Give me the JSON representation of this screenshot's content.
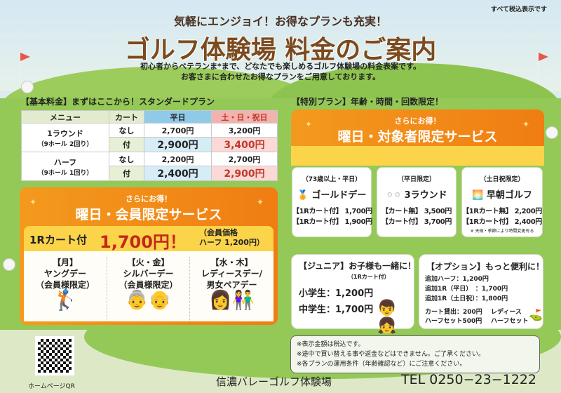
{
  "header": {
    "tax_note": "すべて税込表示です",
    "subtitle": "気軽にエンジョイ！お得なプランも充実！",
    "title": "ゴルフ体験場 料金のご案内",
    "desc_lines": [
      "初心者からベテランま*まで、どなたでも楽しめるゴルフ体験場の料金表案です。",
      "お客さまに合わせたお得なプランをご用意しております。"
    ]
  },
  "basic": {
    "label": "【基本料金】まずはここから！スタンダードプラン",
    "columns": [
      "メニュー",
      "カート",
      "平日",
      "土・日・祝日"
    ],
    "rows": [
      {
        "menu": "1ラウンド",
        "menu_sub": "（9ホール 2回り）",
        "cart_none": "なし",
        "cart_with": "付",
        "wd_none": "2,700円",
        "we_none": "3,200円",
        "wd_with": "2,900円",
        "we_with": "3,400円"
      },
      {
        "menu": "ハーフ",
        "menu_sub": "（9ホール 1回り）",
        "cart_none": "なし",
        "cart_with": "付",
        "wd_none": "2,200円",
        "we_none": "2,700円",
        "wd_with": "2,400円",
        "we_with": "2,900円"
      }
    ]
  },
  "member": {
    "kicker": "さらにお得！",
    "title": "曜日・会員限定サービス",
    "price_prefix": "1Rカート付",
    "price": "1,700円！",
    "price_note_1": "（会員価格",
    "price_note_2": "ハーフ 1,200円）",
    "days": [
      {
        "day": "【月】",
        "name": "ヤングデー",
        "note": "（会員様限定）"
      },
      {
        "day": "【火・金】",
        "name": "シルバーデー",
        "note": "（会員様限定）"
      },
      {
        "day": "【水・木】",
        "name": "レディースデー/",
        "note": "男女ペアデー"
      }
    ]
  },
  "special": {
    "label": "【特別プラン】年齢・時間・回数限定！",
    "kicker": "さらにお得！",
    "title": "曜日・対象者限定サービス",
    "cards": [
      {
        "cond": "（73歳以上・平日）",
        "name": "ゴールドデー",
        "icon": "gold-medal-icon",
        "prices": [
          "【1Rカート付】 1,700円",
          "【1Rカート付】 1,900円"
        ],
        "note": ""
      },
      {
        "cond": "（平日限定）",
        "name": "3ラウンド",
        "icon": "golf-balls-icon",
        "prices": [
          "【カート無】 3,500円",
          "【カート付】 3,700円"
        ],
        "note": ""
      },
      {
        "cond": "（土日祝限定）",
        "name": "早朝ゴルフ",
        "icon": "sunrise-icon",
        "prices": [
          "【1Rカート無】 2,200円",
          "【1Rカート付】 2,400円"
        ],
        "note": "※ 天候・季節により時間変更有る"
      }
    ]
  },
  "junior": {
    "title": "【ジュニア】お子様も一緒に！",
    "sub": "（1Rカート付）",
    "prices": [
      "小学生：1,200円",
      "中学生：1,700円"
    ]
  },
  "option": {
    "title": "【オプション】もっと便利に！",
    "items": [
      "追加ハーフ：1,200円",
      "追加1R（平日）　：1,700円",
      "追加1R（土日祝）：1,800円"
    ],
    "rental_1": "カート貸出：200円",
    "rental_2": "ハーフセット500円",
    "ladies_1": "レディース",
    "ladies_2": "ハーフセット"
  },
  "notes": [
    "※表示金額は税込です。",
    "※途中で買い替える事や返金などはできません。ご了承ください。",
    "※各プランの運用条件（年齢確認など）にご注意ください。"
  ],
  "footer": {
    "qr_label": "ホームページQR",
    "name": "信濃バレーゴルフ体験場",
    "tel": "TEL 0250−23−1222"
  }
}
